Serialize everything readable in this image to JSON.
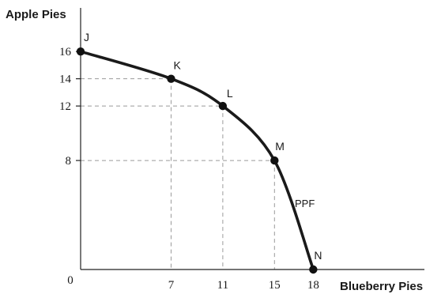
{
  "chart_data": {
    "type": "line",
    "xlabel": "Blueberry Pies",
    "ylabel": "Apple Pies",
    "origin_label": "0",
    "x_ticks": [
      7,
      11,
      15,
      18
    ],
    "y_ticks": [
      8,
      12,
      14,
      16
    ],
    "xlim": [
      0,
      26.6
    ],
    "ylim": [
      0,
      19.2
    ],
    "grid": false,
    "guide_lines": "dashed",
    "series": [
      {
        "name": "PPF",
        "points": [
          {
            "label": "J",
            "x": 0,
            "y": 16
          },
          {
            "label": "K",
            "x": 7,
            "y": 14
          },
          {
            "label": "L",
            "x": 11,
            "y": 12
          },
          {
            "label": "M",
            "x": 15,
            "y": 8
          },
          {
            "label": "N",
            "x": 18,
            "y": 0
          }
        ]
      }
    ]
  }
}
